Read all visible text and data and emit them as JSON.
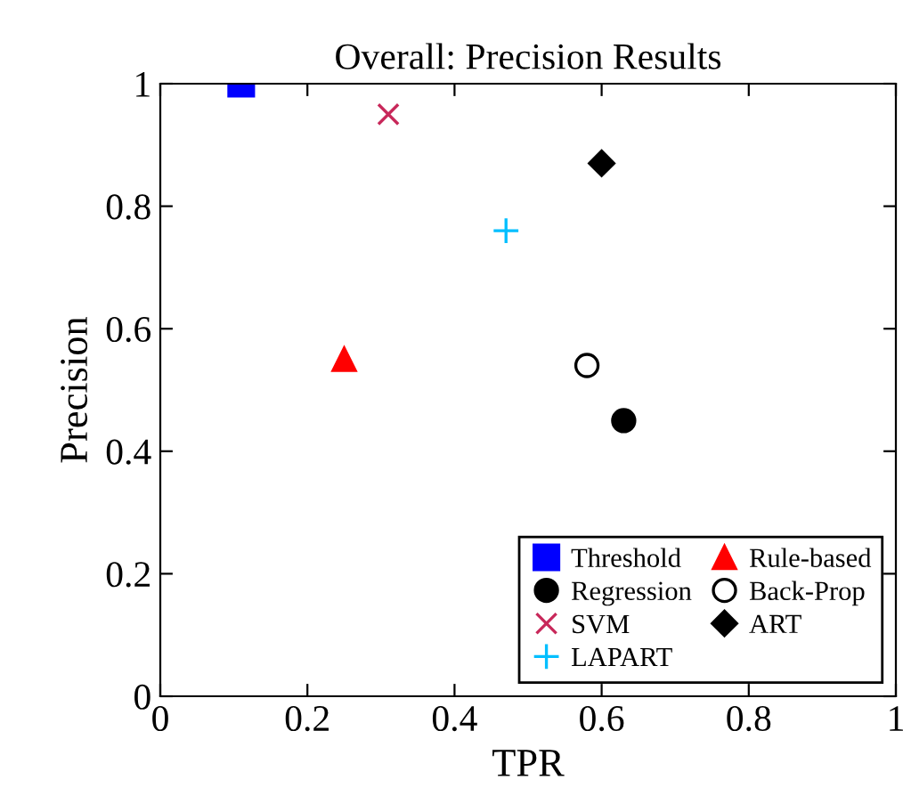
{
  "chart_data": {
    "type": "scatter",
    "title": "Overall: Precision Results",
    "xlabel": "TPR",
    "ylabel": "Precision",
    "xlim": [
      0,
      1
    ],
    "ylim": [
      0,
      1
    ],
    "xticks": [
      0,
      0.2,
      0.4,
      0.6,
      0.8,
      1
    ],
    "yticks": [
      0,
      0.2,
      0.4,
      0.6,
      0.8,
      1
    ],
    "grid": false,
    "legend": "bottom right",
    "series": [
      {
        "name": "Threshold",
        "x": [
          0.11
        ],
        "values": [
          1.0
        ],
        "marker": "square",
        "color": "#0000ff"
      },
      {
        "name": "Rule-based",
        "x": [
          0.25
        ],
        "values": [
          0.55
        ],
        "marker": "triangle",
        "color": "#ff0000"
      },
      {
        "name": "Regression",
        "x": [
          0.63
        ],
        "values": [
          0.45
        ],
        "marker": "circle",
        "color": "#000000"
      },
      {
        "name": "Back-Prop",
        "x": [
          0.58
        ],
        "values": [
          0.54
        ],
        "marker": "circle",
        "color": "#ffffff"
      },
      {
        "name": "SVM",
        "x": [
          0.31
        ],
        "values": [
          0.95
        ],
        "marker": "cross",
        "color": "#c8285a"
      },
      {
        "name": "ART",
        "x": [
          0.6
        ],
        "values": [
          0.87
        ],
        "marker": "diamond",
        "color": "#000000"
      },
      {
        "name": "LAPART",
        "x": [
          0.47
        ],
        "values": [
          0.76
        ],
        "marker": "plus",
        "color": "#00bfff"
      }
    ]
  }
}
